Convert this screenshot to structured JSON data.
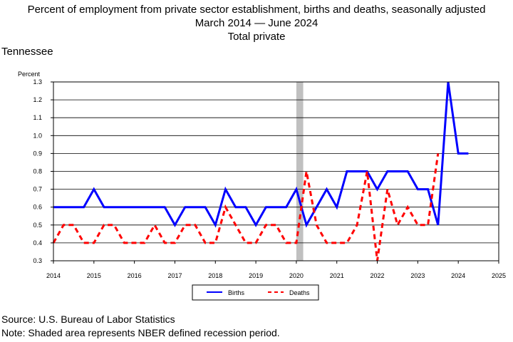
{
  "title_line1": "Percent of employment from private sector establishment, births and deaths, seasonally adjusted",
  "title_line2": "March 2014 — June 2024",
  "title_line3": "Total private",
  "region": "Tennessee",
  "source": "Source: U.S. Bureau of Labor Statistics",
  "note": "Note: Shaded area represents NBER defined recession period.",
  "chart_data": {
    "type": "line",
    "ylabel": "Percent",
    "xlim": [
      2014,
      2025
    ],
    "ylim": [
      0.3,
      1.3
    ],
    "x_ticks": [
      "2014",
      "2015",
      "2016",
      "2017",
      "2018",
      "2019",
      "2020",
      "2021",
      "2022",
      "2023",
      "2024",
      "2025"
    ],
    "y_ticks": [
      "0.3",
      "0.4",
      "0.5",
      "0.6",
      "0.7",
      "0.8",
      "0.9",
      "1.0",
      "1.1",
      "1.2",
      "1.3"
    ],
    "grid": "horizontal",
    "legend_position": "bottom-center",
    "recession": {
      "start": 2020.0,
      "end": 2020.17,
      "color": "#c0c0c0"
    },
    "x": [
      2014.0,
      2014.25,
      2014.5,
      2014.75,
      2015.0,
      2015.25,
      2015.5,
      2015.75,
      2016.0,
      2016.25,
      2016.5,
      2016.75,
      2017.0,
      2017.25,
      2017.5,
      2017.75,
      2018.0,
      2018.25,
      2018.5,
      2018.75,
      2019.0,
      2019.25,
      2019.5,
      2019.75,
      2020.0,
      2020.25,
      2020.5,
      2020.75,
      2021.0,
      2021.25,
      2021.5,
      2021.75,
      2022.0,
      2022.25,
      2022.5,
      2022.75,
      2023.0,
      2023.25,
      2023.5,
      2023.75,
      2024.0,
      2024.25
    ],
    "series": [
      {
        "name": "Births",
        "color": "#0000ff",
        "style": "solid",
        "values": [
          0.6,
          0.6,
          0.6,
          0.6,
          0.7,
          0.6,
          0.6,
          0.6,
          0.6,
          0.6,
          0.6,
          0.6,
          0.5,
          0.6,
          0.6,
          0.6,
          0.5,
          0.7,
          0.6,
          0.6,
          0.5,
          0.6,
          0.6,
          0.6,
          0.7,
          0.5,
          0.6,
          0.7,
          0.6,
          0.8,
          0.8,
          0.8,
          0.7,
          0.8,
          0.8,
          0.8,
          0.7,
          0.7,
          0.5,
          1.3,
          0.9,
          0.9
        ]
      },
      {
        "name": "Deaths",
        "color": "#ff0000",
        "style": "dashed",
        "values": [
          0.4,
          0.5,
          0.5,
          0.4,
          0.4,
          0.5,
          0.5,
          0.4,
          0.4,
          0.4,
          0.5,
          0.4,
          0.4,
          0.5,
          0.5,
          0.4,
          0.4,
          0.6,
          0.5,
          0.4,
          0.4,
          0.5,
          0.5,
          0.4,
          0.4,
          0.8,
          0.5,
          0.4,
          0.4,
          0.4,
          0.5,
          0.8,
          0.3,
          0.7,
          0.5,
          0.6,
          0.5,
          0.5,
          0.9,
          null,
          null,
          null
        ]
      }
    ]
  }
}
